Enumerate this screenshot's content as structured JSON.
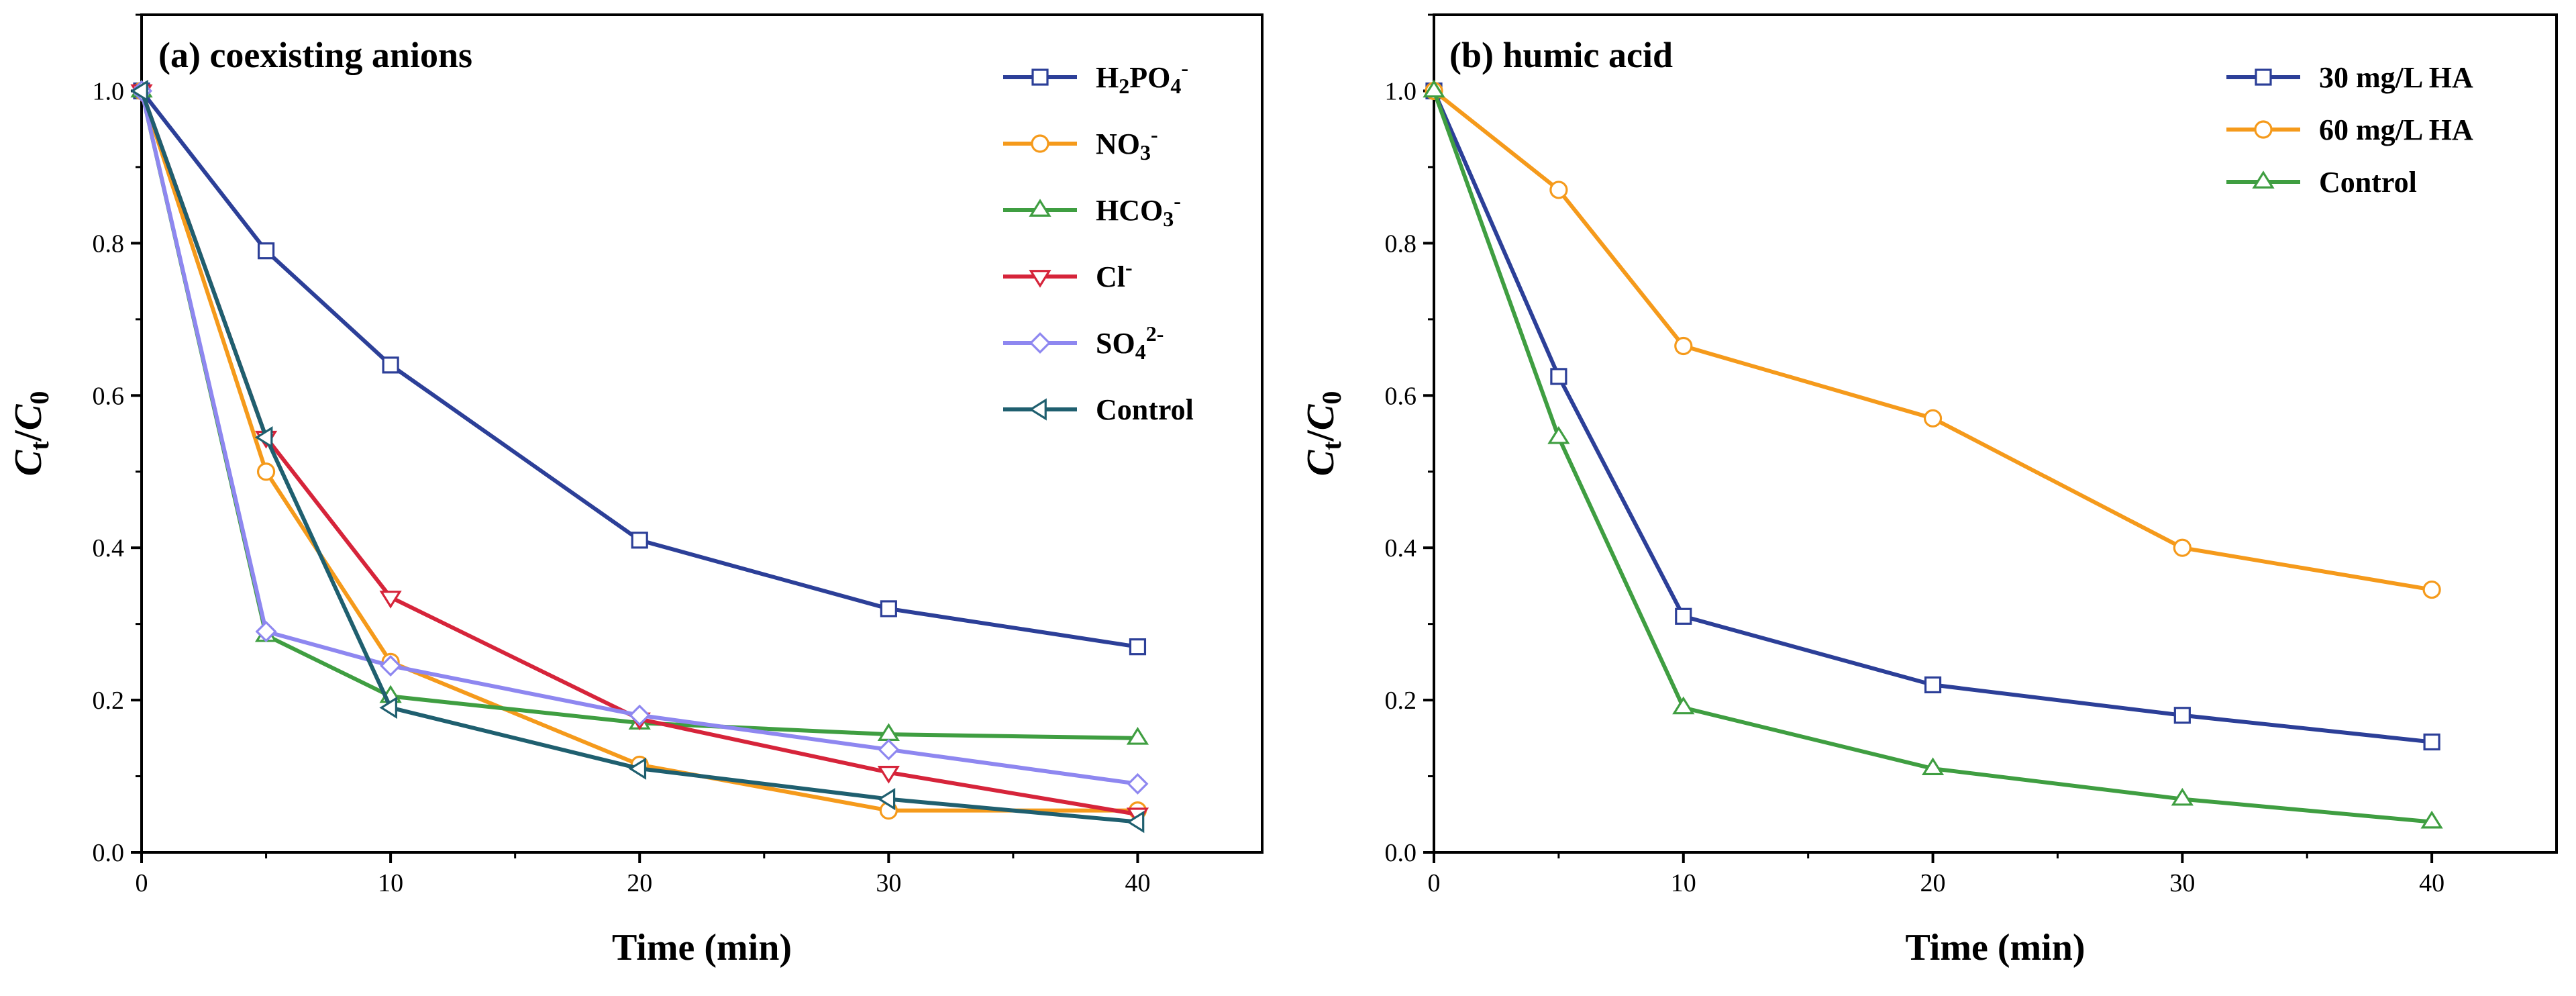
{
  "chart_data": [
    {
      "type": "line",
      "title": "(a) coexisting anions",
      "xlabel": "Time (min)",
      "ylabel": {
        "base1": "C",
        "sub1": "t",
        "sep": "/",
        "base2": "C",
        "sub2": "0"
      },
      "xlim": [
        0,
        45
      ],
      "ylim": [
        0,
        1.1
      ],
      "xticks": [
        "0",
        "10",
        "20",
        "30",
        "40"
      ],
      "yticks": [
        "0.0",
        "0.2",
        "0.4",
        "0.6",
        "0.8",
        "1.0"
      ],
      "legend_position": "top-right",
      "x": [
        0,
        5,
        10,
        20,
        30,
        40
      ],
      "series": [
        {
          "name": "H2PO4-",
          "label": {
            "base": "H",
            "sub": "2",
            "mid": "PO",
            "sub2": "4",
            "sup": "-"
          },
          "color": "#2c3f98",
          "marker": "square",
          "values": [
            1.0,
            0.79,
            0.64,
            0.41,
            0.32,
            0.27
          ]
        },
        {
          "name": "NO3-",
          "label": {
            "base": "NO",
            "sub": "3",
            "sup": "-"
          },
          "color": "#f59a1b",
          "marker": "circle",
          "values": [
            1.0,
            0.5,
            0.25,
            0.115,
            0.055,
            0.055
          ]
        },
        {
          "name": "HCO3-",
          "label": {
            "base": "HCO",
            "sub": "3",
            "sup": "-"
          },
          "color": "#3f9e41",
          "marker": "triangle-up",
          "values": [
            1.0,
            0.285,
            0.205,
            0.17,
            0.155,
            0.15
          ]
        },
        {
          "name": "Cl-",
          "label": {
            "base": "Cl",
            "sup": "-"
          },
          "color": "#d6243a",
          "marker": "triangle-down",
          "values": [
            1.0,
            0.545,
            0.335,
            0.175,
            0.105,
            0.05
          ]
        },
        {
          "name": "SO42-",
          "label": {
            "base": "SO",
            "sub": "4",
            "sup": "2-"
          },
          "color": "#8e87f0",
          "marker": "diamond",
          "values": [
            1.0,
            0.29,
            0.245,
            0.18,
            0.135,
            0.09
          ]
        },
        {
          "name": "Control",
          "label": {
            "base": "Control"
          },
          "color": "#1f5f6f",
          "marker": "triangle-left",
          "values": [
            1.0,
            0.545,
            0.19,
            0.11,
            0.07,
            0.04
          ]
        }
      ]
    },
    {
      "type": "line",
      "title": "(b) humic acid",
      "xlabel": "Time (min)",
      "ylabel": {
        "base1": "C",
        "sub1": "t",
        "sep": "/",
        "base2": "C",
        "sub2": "0"
      },
      "xlim": [
        0,
        45
      ],
      "ylim": [
        0,
        1.1
      ],
      "xticks": [
        "0",
        "10",
        "20",
        "30",
        "40"
      ],
      "yticks": [
        "0.0",
        "0.2",
        "0.4",
        "0.6",
        "0.8",
        "1.0"
      ],
      "legend_position": "top-right",
      "x": [
        0,
        5,
        10,
        20,
        30,
        40
      ],
      "series": [
        {
          "name": "30 mg/L HA",
          "label": {
            "base": "30 mg/L HA"
          },
          "color": "#2c3f98",
          "marker": "square",
          "values": [
            1.0,
            0.625,
            0.31,
            0.22,
            0.18,
            0.145
          ]
        },
        {
          "name": "60 mg/L HA",
          "label": {
            "base": "60 mg/L HA"
          },
          "color": "#f59a1b",
          "marker": "circle",
          "values": [
            1.0,
            0.87,
            0.665,
            0.57,
            0.4,
            0.345
          ]
        },
        {
          "name": "Control",
          "label": {
            "base": "Control"
          },
          "color": "#3f9e41",
          "marker": "triangle-up",
          "values": [
            1.0,
            0.545,
            0.19,
            0.11,
            0.07,
            0.04
          ]
        }
      ]
    }
  ]
}
